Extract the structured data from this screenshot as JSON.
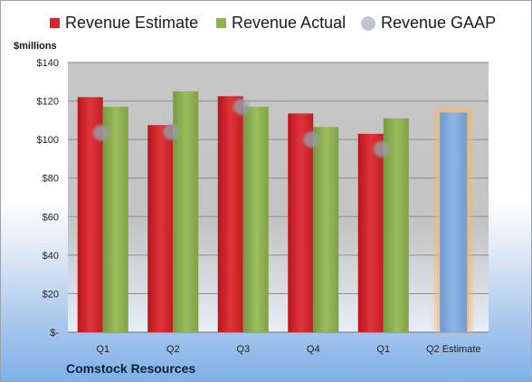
{
  "chart_data": {
    "type": "bar",
    "company": "Comstock Resources",
    "unit_label": "$millions",
    "categories": [
      "Q1",
      "Q2",
      "Q3",
      "Q4",
      "Q1",
      "Q2 Estimate"
    ],
    "series": [
      {
        "name": "Revenue Estimate",
        "color": "#d9262e",
        "values": [
          122,
          107.5,
          122.5,
          113.5,
          103,
          null
        ]
      },
      {
        "name": "Revenue Actual",
        "color": "#8db050",
        "values": [
          117,
          125,
          117,
          106.5,
          111,
          null
        ]
      },
      {
        "name": "Revenue GAAP",
        "color": "#b8bec8",
        "values": [
          103.5,
          104,
          117,
          100,
          95,
          null
        ]
      }
    ],
    "estimate": {
      "category": "Q2 Estimate",
      "value": 114,
      "color": "#7aa6dc",
      "glow": "#f4b86a"
    },
    "y_ticks": [
      "$-",
      "$20",
      "$40",
      "$60",
      "$80",
      "$100",
      "$120",
      "$140"
    ],
    "ylim": [
      0,
      140
    ],
    "legend_position": "top"
  }
}
